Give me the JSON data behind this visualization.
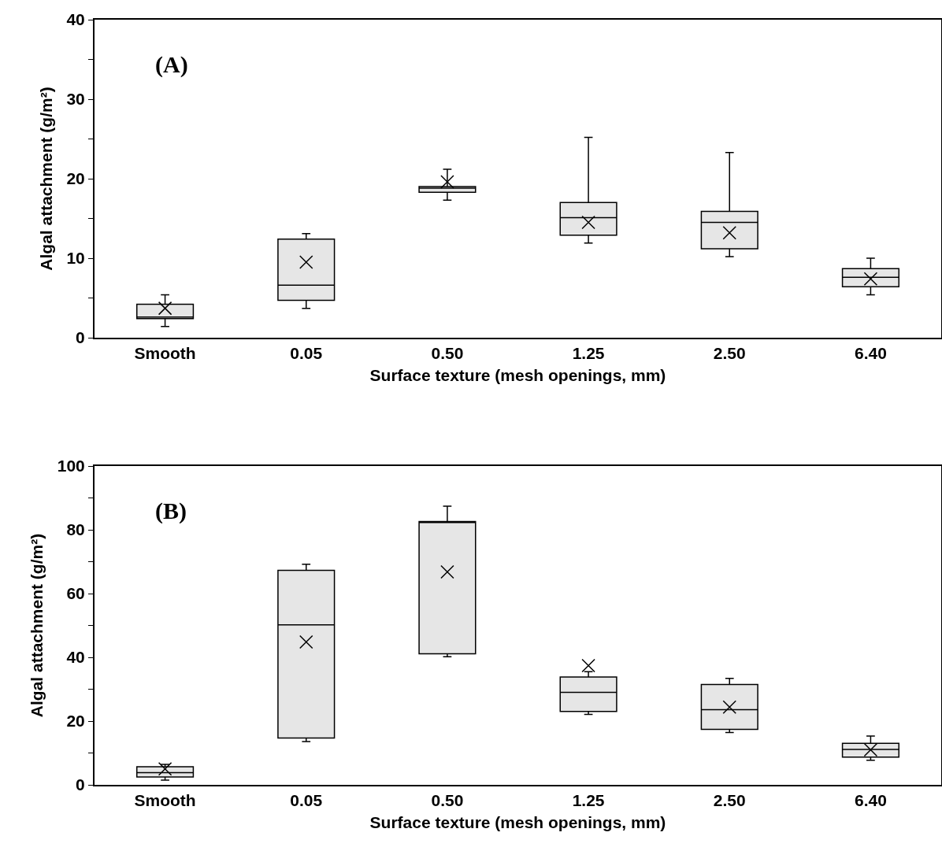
{
  "chart_data": [
    {
      "type": "box",
      "annotations": [
        "(A)"
      ],
      "xlabel": "Surface texture (mesh openings, mm)",
      "ylabel": "Algal attachment (g/m²)",
      "categories": [
        "Smooth",
        "0.05",
        "0.50",
        "1.25",
        "2.50",
        "6.40"
      ],
      "color": "#e6e6e6",
      "ylim": [
        0,
        40
      ],
      "yticks": [
        0,
        {
          "value": 5,
          "label": null
        },
        10,
        {
          "value": 15,
          "label": null
        },
        20,
        {
          "value": 25,
          "label": null
        },
        30,
        {
          "value": 35,
          "label": null
        },
        40
      ],
      "grid": false,
      "marker": "cross",
      "boxes": [
        {
          "low": 1.4,
          "q1": 2.4,
          "median": 2.6,
          "q3": 4.2,
          "high": 5.4,
          "mean": 3.7
        },
        {
          "low": 3.7,
          "q1": 4.7,
          "median": 6.6,
          "q3": 12.4,
          "high": 13.1,
          "mean": 9.5
        },
        {
          "low": 17.3,
          "q1": 18.3,
          "median": 18.8,
          "q3": 19.0,
          "high": 21.2,
          "mean": 19.6
        },
        {
          "low": 11.9,
          "q1": 12.9,
          "median": 15.1,
          "q3": 17.0,
          "high": 25.2,
          "mean": 14.5
        },
        {
          "low": 10.2,
          "q1": 11.2,
          "median": 14.5,
          "q3": 15.9,
          "high": 23.3,
          "mean": 13.2
        },
        {
          "low": 5.4,
          "q1": 6.4,
          "median": 7.6,
          "q3": 8.7,
          "high": 10.0,
          "mean": 7.4
        }
      ]
    },
    {
      "type": "box",
      "annotations": [
        "(B)"
      ],
      "xlabel": "Surface texture (mesh openings, mm)",
      "ylabel": "Algal attachment (g/m²)",
      "categories": [
        "Smooth",
        "0.05",
        "0.50",
        "1.25",
        "2.50",
        "6.40"
      ],
      "color": "#e6e6e6",
      "ylim": [
        0,
        100
      ],
      "yticks": [
        0,
        {
          "value": 10,
          "label": null
        },
        20,
        {
          "value": 30,
          "label": null
        },
        40,
        {
          "value": 50,
          "label": null
        },
        60,
        {
          "value": 70,
          "label": null
        },
        80,
        {
          "value": 90,
          "label": null
        },
        100
      ],
      "grid": false,
      "marker": "cross",
      "boxes": [
        {
          "low": 1.5,
          "q1": 2.5,
          "median": 3.8,
          "q3": 5.7,
          "high": 6.4,
          "mean": 5.0
        },
        {
          "low": 13.6,
          "q1": 14.7,
          "median": 50.2,
          "q3": 67.3,
          "high": 69.2,
          "mean": 44.8
        },
        {
          "low": 40.2,
          "q1": 41.1,
          "median": 82.3,
          "q3": 82.6,
          "high": 87.4,
          "mean": 66.8
        },
        {
          "low": 22.1,
          "q1": 23.0,
          "median": 29.0,
          "q3": 33.8,
          "high": 35.5,
          "mean": 37.4
        },
        {
          "low": 16.4,
          "q1": 17.4,
          "median": 23.6,
          "q3": 31.5,
          "high": 33.4,
          "mean": 24.4
        },
        {
          "low": 7.7,
          "q1": 8.7,
          "median": 11.1,
          "q3": 13.0,
          "high": 15.3,
          "mean": 11.0
        }
      ]
    }
  ]
}
